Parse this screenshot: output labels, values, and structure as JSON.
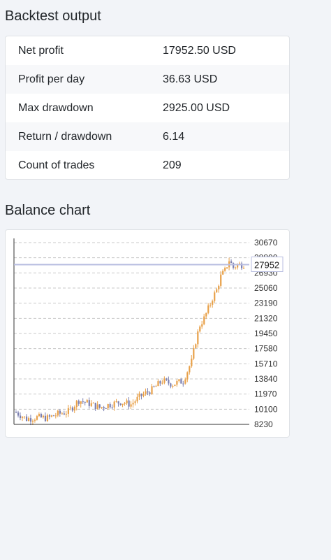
{
  "backtest": {
    "title": "Backtest output",
    "rows": [
      {
        "label": "Net profit",
        "value": "17952.50 USD"
      },
      {
        "label": "Profit per day",
        "value": "36.63 USD"
      },
      {
        "label": "Max drawdown",
        "value": "2925.00 USD"
      },
      {
        "label": "Return / drawdown",
        "value": "6.14"
      },
      {
        "label": "Count of trades",
        "value": "209"
      }
    ]
  },
  "balance": {
    "title": "Balance chart"
  },
  "colors": {
    "up_candle": "#e8a048",
    "down_candle": "#7b7fb0",
    "last_line": "#b8bde0",
    "grid": "#c8c8c8"
  },
  "chart_data": {
    "type": "candlestick",
    "ylim": [
      8230,
      30670
    ],
    "yticks": [
      "30670",
      "28800",
      "26930",
      "25060",
      "23190",
      "21320",
      "19450",
      "17580",
      "15710",
      "13840",
      "11970",
      "10100",
      "8230"
    ],
    "last_value": "27952",
    "trend": [
      [
        0,
        9700
      ],
      [
        5,
        8900
      ],
      [
        10,
        9100
      ],
      [
        15,
        9000
      ],
      [
        20,
        9500
      ],
      [
        25,
        9800
      ],
      [
        30,
        11200
      ],
      [
        35,
        10800
      ],
      [
        40,
        10300
      ],
      [
        45,
        10700
      ],
      [
        50,
        11000
      ],
      [
        55,
        10700
      ],
      [
        60,
        11800
      ],
      [
        65,
        12500
      ],
      [
        70,
        13600
      ],
      [
        75,
        13200
      ],
      [
        80,
        13600
      ],
      [
        84,
        16000
      ],
      [
        86,
        18500
      ],
      [
        88,
        20500
      ],
      [
        90,
        21300
      ],
      [
        92,
        22500
      ],
      [
        94,
        23800
      ],
      [
        96,
        24800
      ],
      [
        98,
        26500
      ],
      [
        100,
        27200
      ],
      [
        102,
        28500
      ],
      [
        104,
        27600
      ],
      [
        106,
        27952
      ]
    ]
  }
}
